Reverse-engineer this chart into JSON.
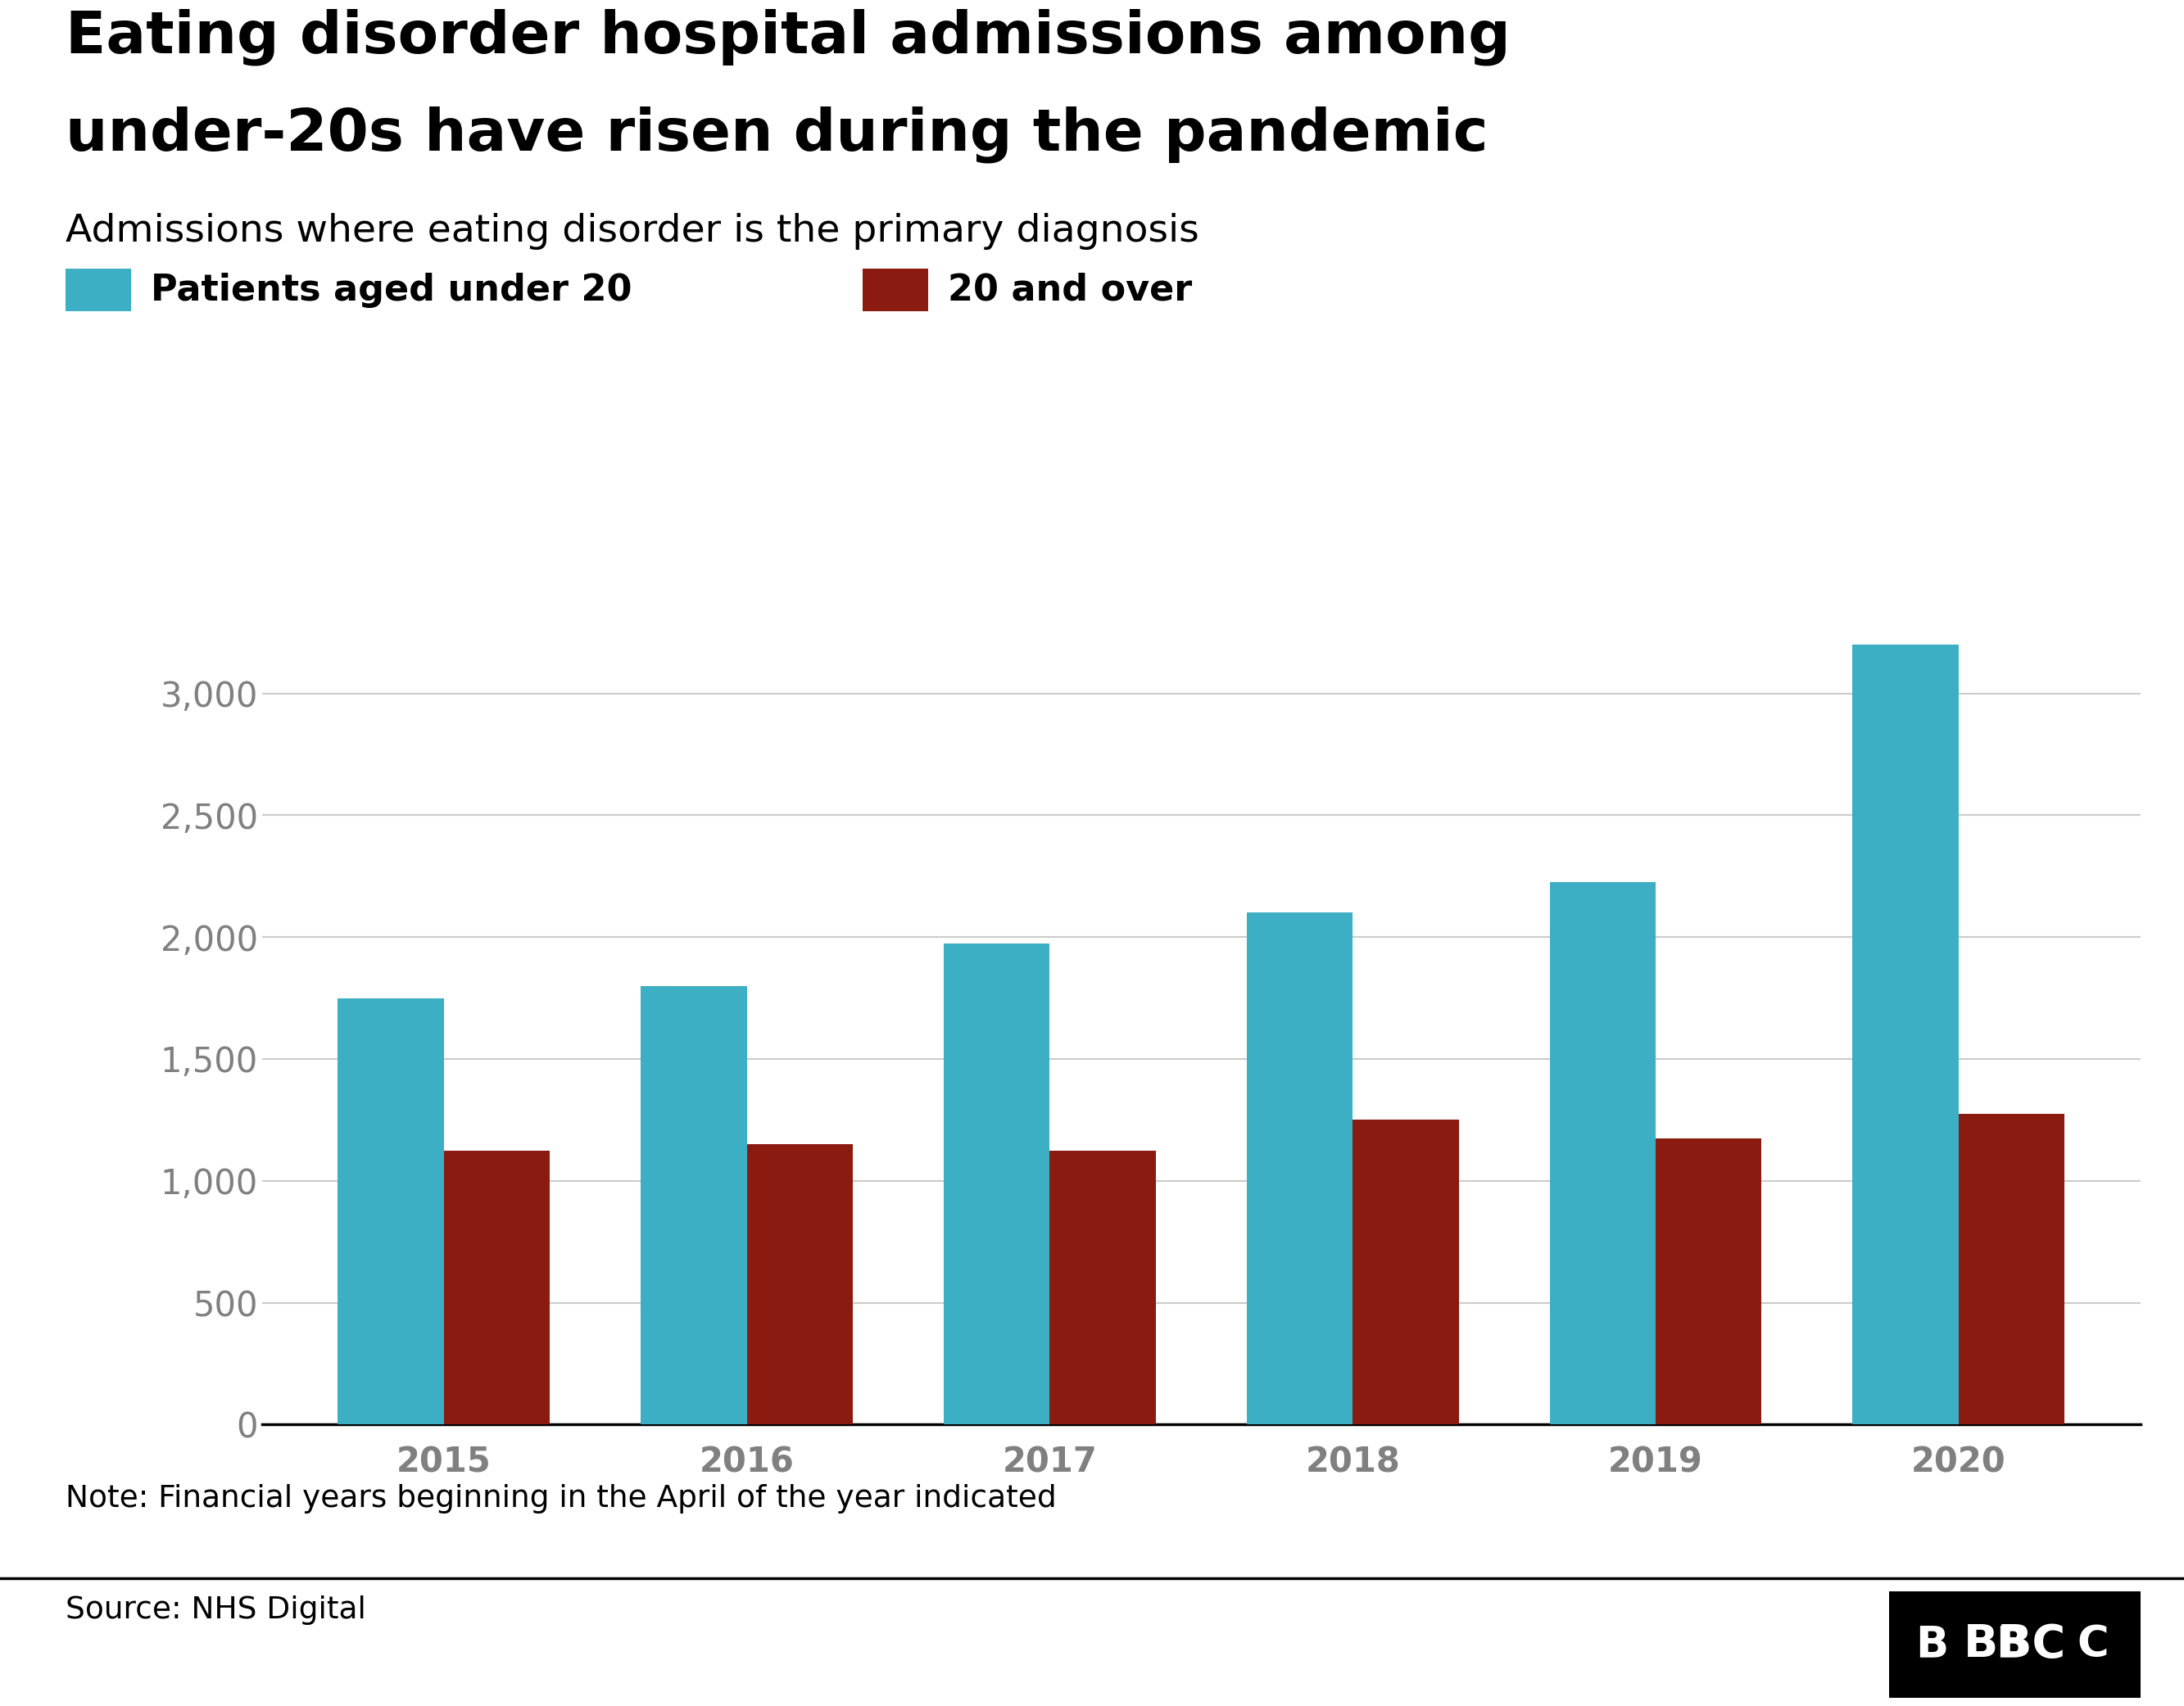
{
  "title_line1": "Eating disorder hospital admissions among",
  "title_line2": "under-20s have risen during the pandemic",
  "subtitle": "Admissions where eating disorder is the primary diagnosis",
  "legend_label_1": "Patients aged under 20",
  "legend_label_2": "20 and over",
  "color_under20": "#3dafc4",
  "color_over20": "#8b1a10",
  "years": [
    "2015",
    "2016",
    "2017",
    "2018",
    "2019",
    "2020"
  ],
  "under20": [
    1750,
    1800,
    1975,
    2100,
    2225,
    3200
  ],
  "over20": [
    1125,
    1150,
    1125,
    1250,
    1175,
    1275
  ],
  "ylim": [
    0,
    3500
  ],
  "yticks": [
    0,
    500,
    1000,
    1500,
    2000,
    2500,
    3000
  ],
  "note": "Note: Financial years beginning in the April of the year indicated",
  "source": "Source: NHS Digital",
  "background_color": "#ffffff",
  "title_fontsize": 52,
  "subtitle_fontsize": 34,
  "legend_fontsize": 32,
  "tick_fontsize": 30,
  "note_fontsize": 27,
  "source_fontsize": 27,
  "bar_width": 0.35,
  "tick_color": "#808080",
  "grid_color": "#cccccc",
  "axis_color": "#000000"
}
